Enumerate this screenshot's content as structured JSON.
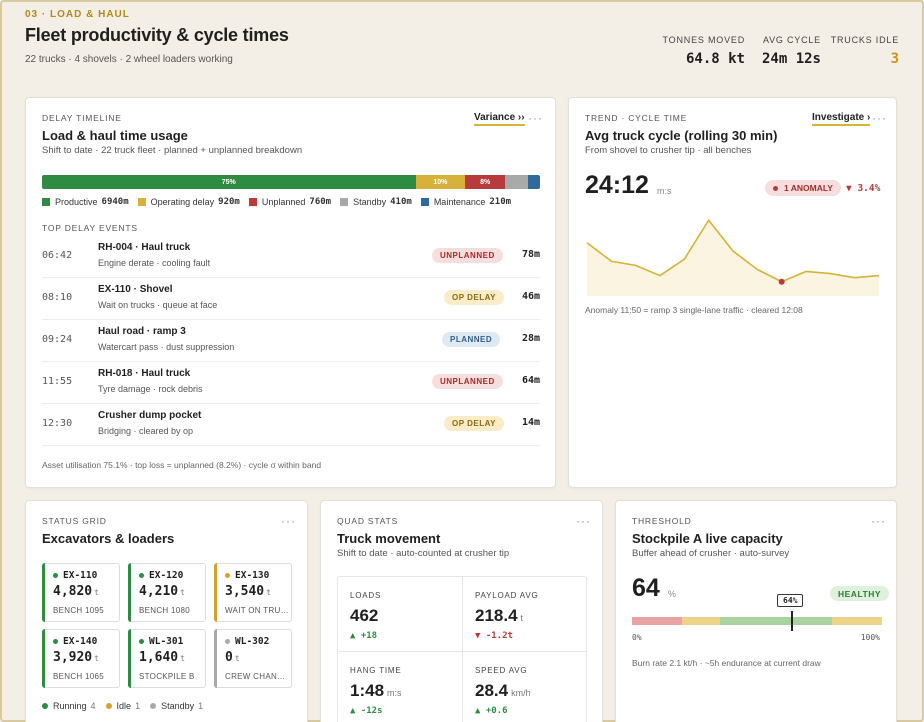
{
  "header": {
    "kicker": "03 · LOAD & HAUL",
    "title": "Fleet productivity & cycle times",
    "subtitle": "22 trucks · 4 shovels · 2 wheel loaders working",
    "kpis": [
      {
        "label": "TONNES MOVED",
        "value": "64.8 kt"
      },
      {
        "label": "AVG CYCLE",
        "value": "24m 12s"
      },
      {
        "label": "TRUCKS IDLE",
        "value": "3"
      }
    ]
  },
  "delay": {
    "kicker": "DELAY TIMELINE",
    "title": "Load & haul time usage",
    "subtitle": "Shift to date · 22 truck fleet · planned + unplanned breakdown",
    "link": "Variance ››",
    "menu": "···",
    "bar": [
      {
        "label": "75%",
        "pct": 75,
        "color": "#2e8b42"
      },
      {
        "label": "10%",
        "pct": 10,
        "color": "#d6b23a"
      },
      {
        "label": "8%",
        "pct": 8,
        "color": "#b83a3a"
      },
      {
        "label": "",
        "pct": 4.6,
        "color": "#a9a9a9"
      },
      {
        "label": "",
        "pct": 2.4,
        "color": "#2f6a9a"
      }
    ],
    "legend": [
      {
        "name": "Productive",
        "value": "6940m",
        "color": "#2e8b42"
      },
      {
        "name": "Operating delay",
        "value": "920m",
        "color": "#d6b23a"
      },
      {
        "name": "Unplanned",
        "value": "760m",
        "color": "#b83a3a"
      },
      {
        "name": "Standby",
        "value": "410m",
        "color": "#a9a9a9"
      },
      {
        "name": "Maintenance",
        "value": "210m",
        "color": "#2f6a9a"
      }
    ],
    "events_heading": "TOP DELAY EVENTS",
    "events": [
      {
        "time": "06:42",
        "title": "RH-004 · Haul truck",
        "desc": "Engine derate · cooling fault",
        "badge": "UNPLANNED",
        "badge_bg": "#f6dede",
        "badge_fg": "#a32b2b",
        "duration": "78m"
      },
      {
        "time": "08:10",
        "title": "EX-110 · Shovel",
        "desc": "Wait on trucks · queue at face",
        "badge": "OP DELAY",
        "badge_bg": "#f8ecc9",
        "badge_fg": "#8a6a0c",
        "duration": "46m"
      },
      {
        "time": "09:24",
        "title": "Haul road · ramp 3",
        "desc": "Watercart pass · dust suppression",
        "badge": "PLANNED",
        "badge_bg": "#dde9f4",
        "badge_fg": "#2f5f8a",
        "duration": "28m"
      },
      {
        "time": "11:55",
        "title": "RH-018 · Haul truck",
        "desc": "Tyre damage · rock debris",
        "badge": "UNPLANNED",
        "badge_bg": "#f6dede",
        "badge_fg": "#a32b2b",
        "duration": "64m"
      },
      {
        "time": "12:30",
        "title": "Crusher dump pocket",
        "desc": "Bridging · cleared by op",
        "badge": "OP DELAY",
        "badge_bg": "#f8ecc9",
        "badge_fg": "#8a6a0c",
        "duration": "14m"
      }
    ],
    "footer": "Asset utilisation 75.1% · top loss = unplanned (8.2%) · cycle σ within band"
  },
  "trend": {
    "kicker": "TREND · CYCLE TIME",
    "title": "Avg truck cycle (rolling 30 min)",
    "subtitle": "From shovel to crusher tip · all benches",
    "link": "Investigate ›",
    "menu": "···",
    "value": "24:12",
    "unit": "m:s",
    "anomaly": "1 ANOMALY",
    "delta": "▼ 3.4%",
    "footer": "Anomaly 11:50 = ramp 3 single-lane traffic · cleared 12:08"
  },
  "chart_data": {
    "type": "line",
    "title": "",
    "xlabel": "",
    "ylabel": "",
    "x": [
      0,
      1,
      2,
      3,
      4,
      5,
      6,
      7,
      8,
      9,
      10,
      11,
      12
    ],
    "values": [
      24.9,
      24.0,
      23.8,
      23.3,
      24.1,
      26.0,
      24.5,
      23.6,
      23.0,
      23.5,
      23.4,
      23.2,
      23.3
    ],
    "anomaly_index": 8,
    "ylim": [
      22.5,
      26.5
    ],
    "color": "#d6b23a"
  },
  "status": {
    "kicker": "STATUS GRID",
    "title": "Excavators & loaders",
    "menu": "···",
    "tiles": [
      {
        "id": "EX-110",
        "tonnes": "4,820",
        "unit": "t",
        "loc": "BENCH 1095",
        "color": "#2e8b42"
      },
      {
        "id": "EX-120",
        "tonnes": "4,210",
        "unit": "t",
        "loc": "BENCH 1080",
        "color": "#2e8b42"
      },
      {
        "id": "EX-130",
        "tonnes": "3,540",
        "unit": "t",
        "loc": "WAIT ON TRUCKS",
        "color": "#d6a02a"
      },
      {
        "id": "EX-140",
        "tonnes": "3,920",
        "unit": "t",
        "loc": "BENCH 1065",
        "color": "#2e8b42"
      },
      {
        "id": "WL-301",
        "tonnes": "1,640",
        "unit": "t",
        "loc": "STOCKPILE B",
        "color": "#2e8b42"
      },
      {
        "id": "WL-302",
        "tonnes": "0",
        "unit": "t",
        "loc": "CREW CHANGE",
        "color": "#a9a9a9"
      }
    ],
    "legend": [
      {
        "name": "Running",
        "count": "4",
        "color": "#2e8b42"
      },
      {
        "name": "Idle",
        "count": "1",
        "color": "#d6a02a"
      },
      {
        "name": "Standby",
        "count": "1",
        "color": "#a9a9a9"
      }
    ]
  },
  "quad": {
    "kicker": "QUAD STATS",
    "title": "Truck movement",
    "subtitle": "Shift to date · auto-counted at crusher tip",
    "menu": "···",
    "cells": [
      {
        "label": "LOADS",
        "value": "462",
        "unit": "",
        "delta": "▲ +18",
        "color": "#2e8b42"
      },
      {
        "label": "PAYLOAD AVG",
        "value": "218.4",
        "unit": "t",
        "delta": "▼ -1.2t",
        "color": "#b83a3a"
      },
      {
        "label": "HANG TIME",
        "value": "1:48",
        "unit": "m:s",
        "delta": "▲ -12s",
        "color": "#2e8b42"
      },
      {
        "label": "SPEED AVG",
        "value": "28.4",
        "unit": "km/h",
        "delta": "▲ +0.6",
        "color": "#2e8b42"
      }
    ]
  },
  "threshold": {
    "kicker": "THRESHOLD",
    "title": "Stockpile A live capacity",
    "subtitle": "Buffer ahead of crusher · auto-survey",
    "menu": "···",
    "value": "64",
    "unit": "%",
    "status": "HEALTHY",
    "level_pct": 64,
    "marker_label": "64%",
    "axis_min": "0%",
    "axis_max": "100%",
    "footer": "Burn rate 2.1 kt/h · ~5h endurance at current draw"
  }
}
